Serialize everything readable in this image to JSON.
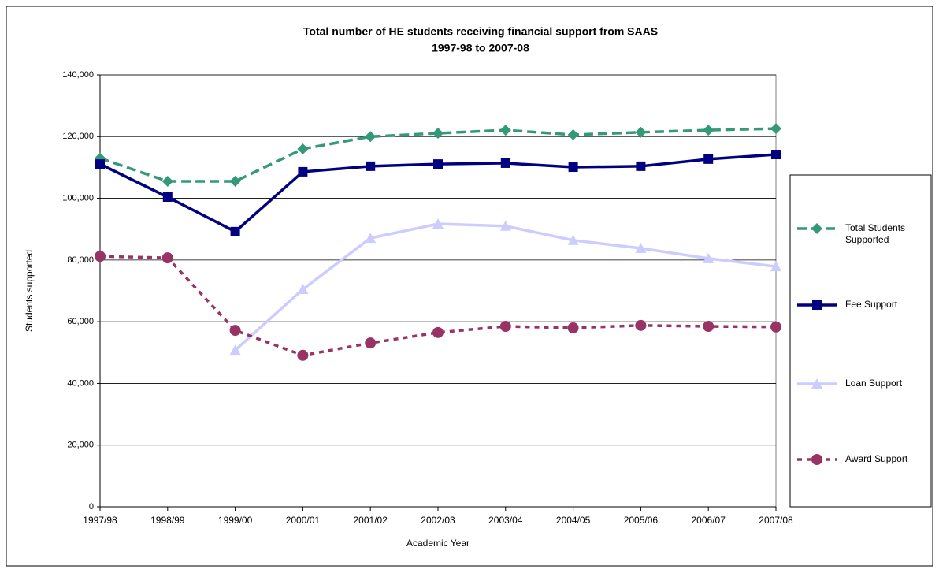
{
  "chart_data": {
    "type": "line",
    "title": "Total number of HE students receiving financial support from SAAS",
    "subtitle": "1997-98 to 2007-08",
    "x_label": "Academic Year",
    "y_label": "Students supported",
    "categories": [
      "1997/98",
      "1998/99",
      "1999/00",
      "2000/01",
      "2001/02",
      "2002/03",
      "2003/04",
      "2004/05",
      "2005/06",
      "2006/07",
      "2007/08"
    ],
    "series": [
      {
        "name": "Total Students Supported",
        "color": "#339977",
        "marker": "diamond",
        "dash": "long",
        "values": [
          113000,
          105500,
          105500,
          116000,
          120000,
          121100,
          122100,
          120600,
          121400,
          122100,
          122600
        ]
      },
      {
        "name": "Fee Support",
        "color": "#000080",
        "marker": "square",
        "dash": "solid",
        "values": [
          111100,
          100400,
          89200,
          108600,
          110400,
          111100,
          111400,
          110100,
          110400,
          112700,
          114200
        ]
      },
      {
        "name": "Loan Support",
        "color": "#ccccff",
        "marker": "triangle",
        "dash": "solid",
        "values": [
          null,
          null,
          50800,
          70500,
          87100,
          91700,
          91000,
          86400,
          83800,
          80500,
          77900
        ]
      },
      {
        "name": "Award Support",
        "color": "#993366",
        "marker": "circle",
        "dash": "short",
        "values": [
          81200,
          80700,
          57200,
          49100,
          53100,
          56500,
          58500,
          58000,
          58800,
          58500,
          58300
        ]
      }
    ],
    "ylim": [
      0,
      140000
    ],
    "yticks": [
      0,
      {
        "value": 20000,
        "label": "20,000"
      },
      {
        "value": 40000,
        "label": "40,000"
      },
      {
        "value": 60000,
        "label": "60,000"
      },
      {
        "value": 80000,
        "label": "80,000"
      },
      {
        "value": 100000,
        "label": "100,000"
      },
      {
        "value": 120000,
        "label": "120,000"
      },
      {
        "value": 140000,
        "label": "140,000"
      }
    ],
    "grid": true,
    "legend": "right"
  }
}
